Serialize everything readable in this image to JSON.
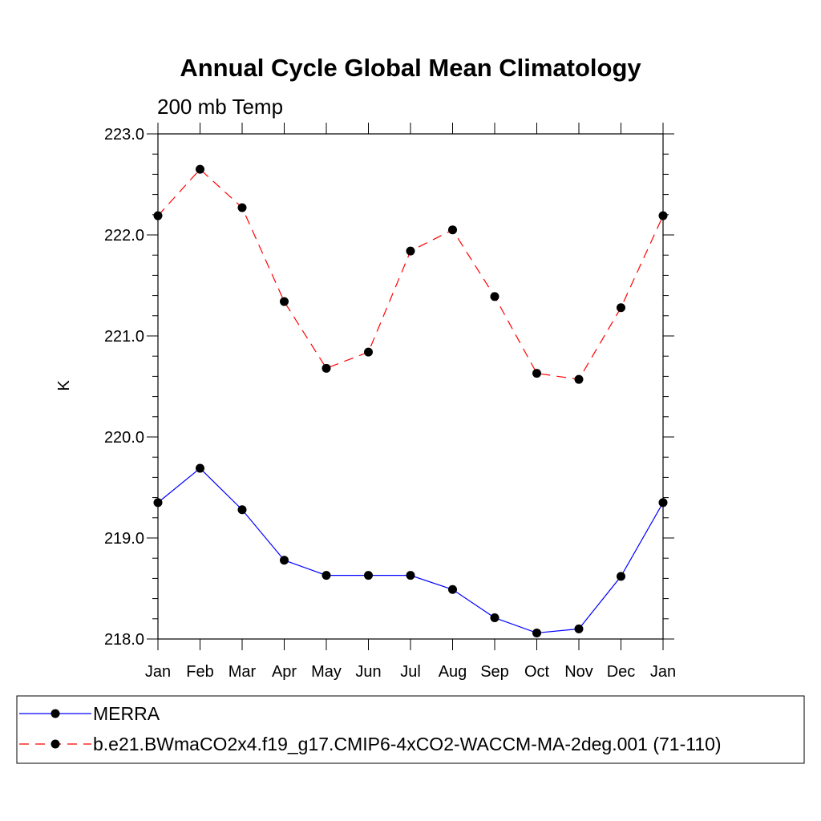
{
  "chart_data": {
    "type": "line",
    "title": "Annual Cycle Global Mean Climatology",
    "subtitle": "200 mb Temp",
    "xlabel": "",
    "ylabel": "K",
    "categories": [
      "Jan",
      "Feb",
      "Mar",
      "Apr",
      "May",
      "Jun",
      "Jul",
      "Aug",
      "Sep",
      "Oct",
      "Nov",
      "Dec",
      "Jan"
    ],
    "ylim": [
      218.0,
      223.0
    ],
    "yticks": [
      218.0,
      219.0,
      220.0,
      221.0,
      222.0,
      223.0
    ],
    "ytick_labels": [
      "218.0",
      "219.0",
      "220.0",
      "221.0",
      "222.0",
      "223.0"
    ],
    "grid": false,
    "legend_position": "bottom",
    "series": [
      {
        "name": "MERRA",
        "color": "#0000ff",
        "line_style": "solid",
        "marker": "filled-circle",
        "values": [
          219.35,
          219.69,
          219.28,
          218.78,
          218.63,
          218.63,
          218.63,
          218.49,
          218.21,
          218.06,
          218.1,
          218.62,
          219.35
        ]
      },
      {
        "name": "b.e21.BWmaCO2x4.f19_g17.CMIP6-4xCO2-WACCM-MA-2deg.001 (71-110)",
        "color": "#ff0000",
        "line_style": "dashed",
        "marker": "filled-circle",
        "values": [
          222.19,
          222.65,
          222.27,
          221.34,
          220.68,
          220.84,
          221.84,
          222.05,
          221.39,
          220.63,
          220.57,
          221.28,
          222.19
        ]
      }
    ]
  }
}
